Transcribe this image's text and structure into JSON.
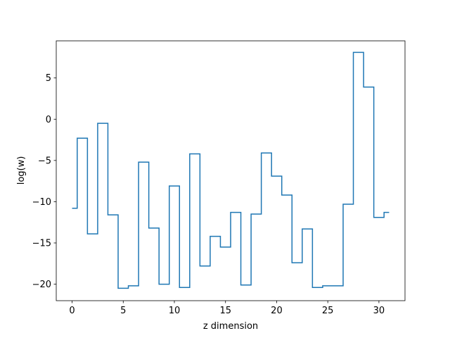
{
  "chart_data": {
    "type": "line",
    "drawstyle": "steps-mid",
    "title": "",
    "xlabel": "z dimension",
    "ylabel": "log(w)",
    "xlim": [
      -1.55,
      32.55
    ],
    "ylim": [
      -22,
      9.5
    ],
    "xticks": [
      0,
      5,
      10,
      15,
      20,
      25,
      30
    ],
    "yticks": [
      -20,
      -15,
      -10,
      -5,
      0,
      5
    ],
    "grid": false,
    "line_color": "#1f77b4",
    "series": [
      {
        "x": [
          0,
          1,
          2,
          3,
          4,
          5,
          6,
          7,
          8,
          9,
          10,
          11,
          12,
          13,
          14,
          15,
          16,
          17,
          18,
          19,
          20,
          21,
          22,
          23,
          24,
          25,
          26,
          27,
          28,
          29,
          30,
          31
        ],
        "values": [
          -10.8,
          -2.3,
          -13.9,
          -0.5,
          -11.6,
          -20.5,
          -20.2,
          -5.2,
          -13.2,
          -20.0,
          -8.1,
          -20.4,
          -4.2,
          -17.8,
          -14.2,
          -15.5,
          -11.3,
          -20.1,
          -11.5,
          -4.1,
          -6.9,
          -9.2,
          -17.4,
          -13.3,
          -20.4,
          -20.2,
          -20.2,
          -10.3,
          8.1,
          3.9,
          -11.9,
          -11.3
        ]
      }
    ]
  }
}
